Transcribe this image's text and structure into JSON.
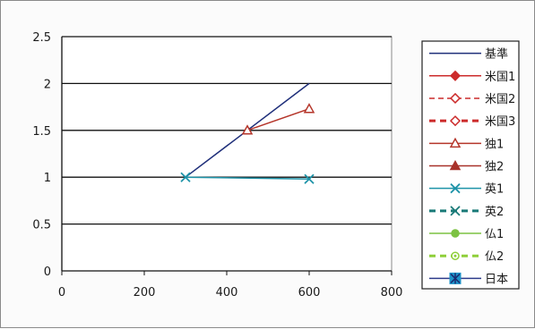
{
  "chart_data": {
    "type": "line",
    "title": "",
    "xlabel": "",
    "ylabel": "",
    "xlim": [
      0,
      800
    ],
    "ylim": [
      0,
      2.5
    ],
    "x_ticks": [
      "0",
      "200",
      "400",
      "600",
      "800"
    ],
    "y_ticks": [
      "0",
      "0.5",
      "1",
      "1.5",
      "2",
      "2.5"
    ],
    "grid": "horizontal",
    "legend_position": "right",
    "series": [
      {
        "name": "基準",
        "color": "#1f2f7a",
        "marker": "none",
        "dash": "solid",
        "points": [
          [
            300,
            1.0
          ],
          [
            600,
            2.0
          ]
        ]
      },
      {
        "name": "米国1",
        "color": "#cc2b2b",
        "marker": "diamond-filled",
        "dash": "solid",
        "points": []
      },
      {
        "name": "米国2",
        "color": "#cc2b2b",
        "marker": "diamond-open",
        "dash": "dashed",
        "points": []
      },
      {
        "name": "米国3",
        "color": "#cc2b2b",
        "marker": "diamond-open",
        "dash": "dashed-thick",
        "points": []
      },
      {
        "name": "独1",
        "color": "#b5352a",
        "marker": "triangle-open",
        "dash": "solid",
        "points": [
          [
            450,
            1.5
          ],
          [
            600,
            1.73
          ]
        ]
      },
      {
        "name": "独2",
        "color": "#a8322a",
        "marker": "triangle-filled",
        "dash": "solid",
        "points": []
      },
      {
        "name": "英1",
        "color": "#1e93a8",
        "marker": "x",
        "dash": "solid",
        "points": [
          [
            300,
            1.0
          ],
          [
            600,
            0.98
          ]
        ]
      },
      {
        "name": "英2",
        "color": "#1a7a78",
        "marker": "x",
        "dash": "dashed-thick",
        "points": []
      },
      {
        "name": "仏1",
        "color": "#7cc242",
        "marker": "circle-filled",
        "dash": "solid",
        "points": []
      },
      {
        "name": "仏2",
        "color": "#8fcf3a",
        "marker": "circle-open",
        "dash": "dashed-thick",
        "points": []
      },
      {
        "name": "日本",
        "color": "#2d3b8a",
        "marker": "square-star",
        "dash": "solid",
        "points": []
      }
    ]
  }
}
